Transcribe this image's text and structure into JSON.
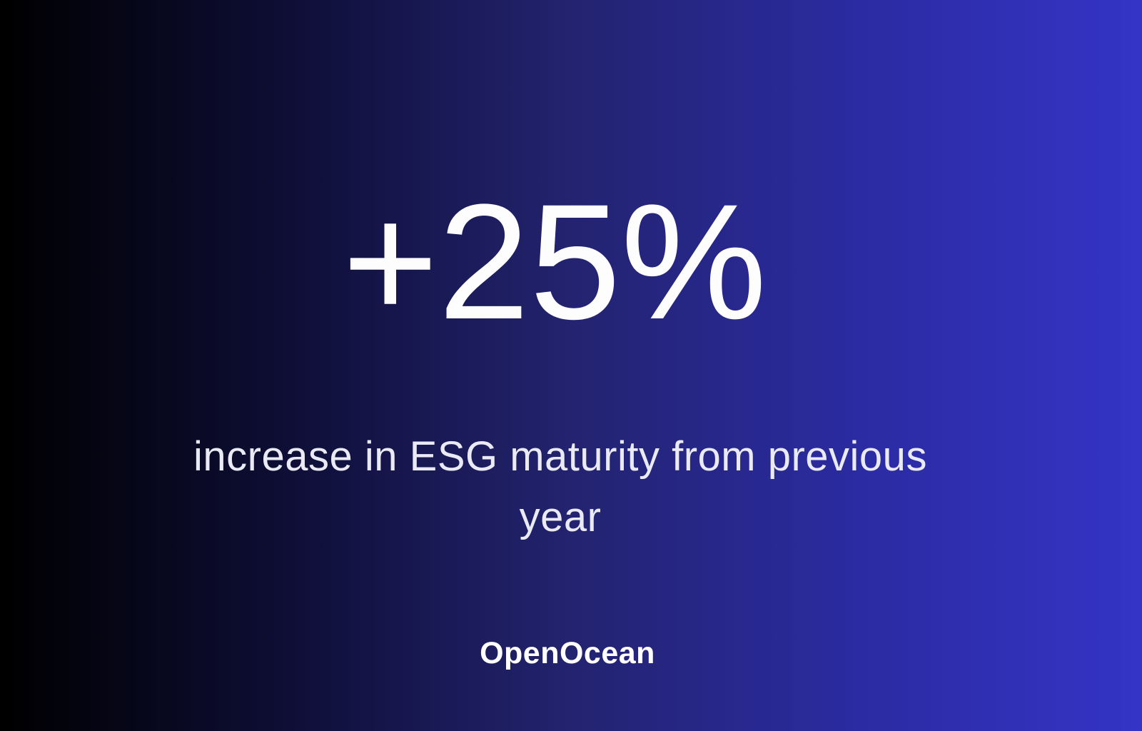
{
  "slide": {
    "stat_value": "+25%",
    "stat_description": "increase in ESG maturity from previous year",
    "brand_name": "OpenOcean"
  },
  "colors": {
    "gradient_left": "#000000",
    "gradient_mid": "#232370",
    "gradient_right": "#3434c6",
    "stat_text": "#fdfdfe",
    "description_text": "#eaeaf5",
    "logo_text": "#ffffff"
  }
}
